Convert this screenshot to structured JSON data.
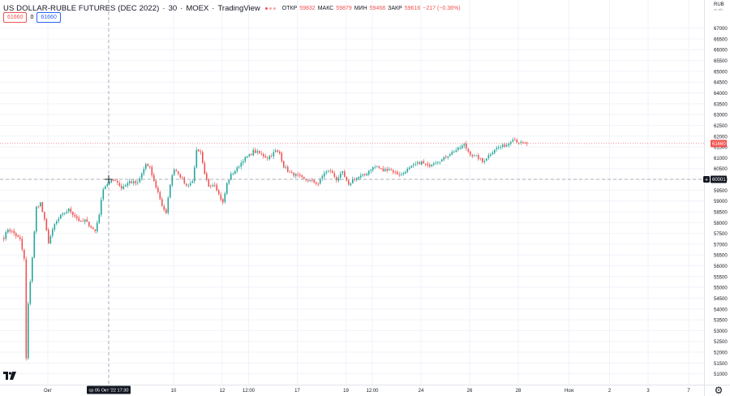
{
  "header": {
    "symbol": "US DOLLAR-RUBLE FUTURES (DEC 2022)",
    "interval": "30",
    "exchange": "MOEX",
    "provider": "TradingView",
    "ohlc": {
      "open_label": "ОТКР",
      "open": "59832",
      "high_label": "МАКС",
      "high": "59879",
      "low_label": "МИН",
      "low": "59468",
      "close_label": "ЗАКР",
      "close": "59616",
      "change": "−217 (−0.36%)"
    },
    "bid": "61660",
    "spread": "0",
    "ask": "61660"
  },
  "axis": {
    "currency": "RUB",
    "currency_sub": "не обл.",
    "last_price": "61660",
    "cursor_price": "60001",
    "cursor_time": "ср 05 Окт '22   17:30"
  },
  "colors": {
    "up": "#26a69a",
    "down": "#ef5350",
    "grid": "#f0f3fa",
    "text": "#131722",
    "crosshair": "#9598a1",
    "pricebox_dark": "#131722"
  },
  "chart_data": {
    "type": "candlestick",
    "title": "US DOLLAR-RUBLE FUTURES (DEC 2022)",
    "ylim": [
      50500,
      68300
    ],
    "y_ticks": [
      51000,
      51500,
      52000,
      52500,
      53000,
      53500,
      54000,
      54500,
      55000,
      55500,
      56000,
      56500,
      57000,
      57500,
      58000,
      58500,
      59000,
      59500,
      60000,
      60500,
      61000,
      61500,
      62000,
      62500,
      63000,
      63500,
      64000,
      64500,
      65000,
      65500,
      66000,
      66500,
      67000
    ],
    "x_ticks": [
      {
        "label": "Окт",
        "idx": 22
      },
      {
        "label": "10",
        "idx": 84
      },
      {
        "label": "12",
        "idx": 108
      },
      {
        "label": "12:00",
        "idx": 121
      },
      {
        "label": "17",
        "idx": 145
      },
      {
        "label": "19",
        "idx": 169
      },
      {
        "label": "12:00",
        "idx": 182
      },
      {
        "label": "24",
        "idx": 206
      },
      {
        "label": "26",
        "idx": 230
      },
      {
        "label": "28",
        "idx": 254
      },
      {
        "label": "Ноя",
        "idx": 279
      },
      {
        "label": "2",
        "idx": 299
      },
      {
        "label": "3",
        "idx": 318
      },
      {
        "label": "7",
        "idx": 338
      }
    ],
    "last_price": 61660,
    "crosshair": {
      "idx": 52,
      "price": 60001
    },
    "anchors": [
      [
        0,
        57300
      ],
      [
        2,
        57700
      ],
      [
        5,
        57500
      ],
      [
        8,
        57200
      ],
      [
        10,
        56300
      ],
      [
        11,
        51700
      ],
      [
        12,
        54200
      ],
      [
        14,
        56400
      ],
      [
        16,
        58700
      ],
      [
        18,
        58900
      ],
      [
        20,
        58100
      ],
      [
        22,
        57100
      ],
      [
        25,
        57900
      ],
      [
        28,
        58300
      ],
      [
        32,
        58600
      ],
      [
        35,
        58300
      ],
      [
        38,
        58000
      ],
      [
        40,
        58100
      ],
      [
        43,
        57800
      ],
      [
        45,
        57600
      ],
      [
        47,
        58400
      ],
      [
        49,
        59600
      ],
      [
        51,
        59800
      ],
      [
        55,
        60000
      ],
      [
        58,
        59600
      ],
      [
        62,
        59900
      ],
      [
        66,
        59800
      ],
      [
        70,
        60700
      ],
      [
        72,
        60500
      ],
      [
        74,
        59900
      ],
      [
        76,
        59400
      ],
      [
        78,
        58800
      ],
      [
        80,
        58400
      ],
      [
        82,
        59800
      ],
      [
        84,
        60500
      ],
      [
        86,
        60300
      ],
      [
        88,
        60000
      ],
      [
        90,
        59700
      ],
      [
        93,
        59900
      ],
      [
        95,
        61300
      ],
      [
        97,
        61200
      ],
      [
        99,
        60200
      ],
      [
        101,
        59700
      ],
      [
        104,
        59800
      ],
      [
        106,
        59300
      ],
      [
        108,
        58900
      ],
      [
        110,
        59800
      ],
      [
        112,
        60200
      ],
      [
        115,
        60500
      ],
      [
        118,
        60900
      ],
      [
        121,
        61100
      ],
      [
        123,
        61300
      ],
      [
        126,
        61200
      ],
      [
        130,
        61000
      ],
      [
        134,
        61300
      ],
      [
        136,
        61200
      ],
      [
        138,
        60600
      ],
      [
        141,
        60300
      ],
      [
        144,
        60200
      ],
      [
        148,
        60000
      ],
      [
        152,
        59900
      ],
      [
        155,
        59800
      ],
      [
        158,
        60300
      ],
      [
        161,
        60400
      ],
      [
        164,
        60000
      ],
      [
        167,
        60300
      ],
      [
        170,
        59700
      ],
      [
        172,
        60000
      ],
      [
        175,
        60100
      ],
      [
        178,
        60200
      ],
      [
        181,
        60500
      ],
      [
        184,
        60600
      ],
      [
        187,
        60400
      ],
      [
        190,
        60500
      ],
      [
        193,
        60300
      ],
      [
        196,
        60200
      ],
      [
        198,
        60400
      ],
      [
        200,
        60500
      ],
      [
        203,
        60700
      ],
      [
        206,
        60800
      ],
      [
        209,
        60600
      ],
      [
        212,
        60800
      ],
      [
        216,
        60900
      ],
      [
        220,
        61200
      ],
      [
        224,
        61400
      ],
      [
        227,
        61600
      ],
      [
        229,
        61300
      ],
      [
        231,
        61100
      ],
      [
        234,
        61000
      ],
      [
        236,
        60800
      ],
      [
        239,
        61100
      ],
      [
        242,
        61400
      ],
      [
        245,
        61500
      ],
      [
        248,
        61600
      ],
      [
        251,
        61900
      ],
      [
        254,
        61700
      ],
      [
        256,
        61650
      ],
      [
        258,
        61660
      ]
    ]
  }
}
